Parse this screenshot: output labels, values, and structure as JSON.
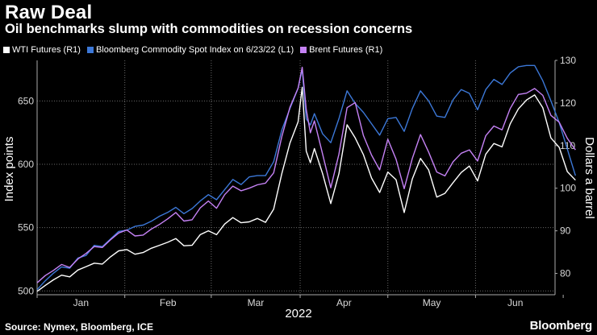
{
  "header": {
    "title": "Raw Deal",
    "subtitle": "Oil benchmarks slump with commodities on recession concerns"
  },
  "footer": {
    "source": "Source: Nymex, Bloomberg, ICE",
    "brand": "Bloomberg"
  },
  "chart_data": {
    "type": "line",
    "title": "Raw Deal",
    "subtitle": "Oil benchmarks slump with commodities on recession concerns",
    "xlabel": "2022",
    "ylabel_left": "Index points",
    "ylabel_right": "Dollars a barrel",
    "x_ticks": [
      "Jan",
      "Feb",
      "Mar",
      "Apr",
      "May",
      "Jun"
    ],
    "x_domain": [
      0,
      127
    ],
    "y_left": {
      "lim": [
        497,
        682
      ],
      "ticks": [
        500,
        550,
        600,
        650
      ]
    },
    "y_right": {
      "lim": [
        75,
        130
      ],
      "ticks": [
        80,
        90,
        100,
        110,
        120,
        130
      ]
    },
    "legend": [
      "WTI Futures (R1)",
      "Bloomberg Commodity Spot Index on 6/23/22 (L1)",
      "Brent Futures (R1)"
    ],
    "series": [
      {
        "name": "WTI Futures (R1)",
        "axis": "right",
        "color": "#ffffff",
        "values": [
          [
            0,
            75.8
          ],
          [
            2,
            77.2
          ],
          [
            4,
            78.5
          ],
          [
            6,
            79.6
          ],
          [
            8,
            79.2
          ],
          [
            10,
            80.8
          ],
          [
            12,
            81.6
          ],
          [
            14,
            82.4
          ],
          [
            16,
            82.2
          ],
          [
            18,
            83.9
          ],
          [
            20,
            85.3
          ],
          [
            22,
            85.6
          ],
          [
            24,
            84.5
          ],
          [
            26,
            84.9
          ],
          [
            28,
            85.9
          ],
          [
            30,
            86.6
          ],
          [
            32,
            87.3
          ],
          [
            34,
            88.2
          ],
          [
            36,
            86.5
          ],
          [
            38,
            86.6
          ],
          [
            40,
            89.1
          ],
          [
            42,
            90.0
          ],
          [
            44,
            89.1
          ],
          [
            46,
            91.6
          ],
          [
            48,
            93.1
          ],
          [
            50,
            91.9
          ],
          [
            52,
            92.1
          ],
          [
            54,
            92.9
          ],
          [
            56,
            92.0
          ],
          [
            58,
            95.1
          ],
          [
            60,
            103.4
          ],
          [
            62,
            110.6
          ],
          [
            64,
            115.6
          ],
          [
            65,
            123.7
          ],
          [
            66,
            108.7
          ],
          [
            67,
            106.0
          ],
          [
            68,
            109.3
          ],
          [
            70,
            103.4
          ],
          [
            72,
            96.4
          ],
          [
            74,
            103.4
          ],
          [
            76,
            114.9
          ],
          [
            78,
            111.8
          ],
          [
            80,
            107.9
          ],
          [
            82,
            102.4
          ],
          [
            84,
            99.0
          ],
          [
            86,
            103.8
          ],
          [
            88,
            102.0
          ],
          [
            90,
            94.3
          ],
          [
            92,
            102.2
          ],
          [
            94,
            107.0
          ],
          [
            96,
            104.3
          ],
          [
            98,
            97.9
          ],
          [
            100,
            98.8
          ],
          [
            102,
            101.3
          ],
          [
            104,
            103.7
          ],
          [
            106,
            105.2
          ],
          [
            108,
            101.7
          ],
          [
            110,
            108.0
          ],
          [
            112,
            110.5
          ],
          [
            114,
            109.7
          ],
          [
            116,
            115.1
          ],
          [
            118,
            118.6
          ],
          [
            120,
            120.7
          ],
          [
            122,
            121.9
          ],
          [
            124,
            118.9
          ],
          [
            126,
            111.8
          ],
          [
            128,
            109.6
          ],
          [
            130,
            103.9
          ],
          [
            132,
            101.9
          ]
        ]
      },
      {
        "name": "Bloomberg Commodity Spot Index on 6/23/22 (L1)",
        "axis": "left",
        "color": "#3c78d8",
        "values": [
          [
            0,
            501
          ],
          [
            2,
            508
          ],
          [
            4,
            514
          ],
          [
            6,
            519
          ],
          [
            8,
            518
          ],
          [
            10,
            526
          ],
          [
            12,
            528
          ],
          [
            14,
            536
          ],
          [
            16,
            535
          ],
          [
            18,
            541
          ],
          [
            20,
            547
          ],
          [
            22,
            548
          ],
          [
            24,
            551
          ],
          [
            26,
            552
          ],
          [
            28,
            555
          ],
          [
            30,
            559
          ],
          [
            32,
            562
          ],
          [
            34,
            566
          ],
          [
            36,
            561
          ],
          [
            38,
            565
          ],
          [
            40,
            571
          ],
          [
            42,
            576
          ],
          [
            44,
            572
          ],
          [
            46,
            580
          ],
          [
            48,
            588
          ],
          [
            50,
            584
          ],
          [
            52,
            590
          ],
          [
            54,
            591
          ],
          [
            56,
            591
          ],
          [
            58,
            602
          ],
          [
            60,
            627
          ],
          [
            62,
            644
          ],
          [
            64,
            660
          ],
          [
            65,
            675
          ],
          [
            66,
            636
          ],
          [
            67,
            631
          ],
          [
            68,
            640
          ],
          [
            70,
            624
          ],
          [
            72,
            617
          ],
          [
            74,
            636
          ],
          [
            76,
            658
          ],
          [
            78,
            648
          ],
          [
            80,
            641
          ],
          [
            82,
            632
          ],
          [
            84,
            623
          ],
          [
            86,
            636
          ],
          [
            88,
            637
          ],
          [
            90,
            626
          ],
          [
            92,
            644
          ],
          [
            94,
            658
          ],
          [
            96,
            650
          ],
          [
            98,
            638
          ],
          [
            100,
            637
          ],
          [
            102,
            651
          ],
          [
            104,
            659
          ],
          [
            106,
            656
          ],
          [
            108,
            643
          ],
          [
            110,
            659
          ],
          [
            112,
            667
          ],
          [
            114,
            663
          ],
          [
            116,
            672
          ],
          [
            118,
            677
          ],
          [
            120,
            678
          ],
          [
            122,
            678
          ],
          [
            124,
            666
          ],
          [
            126,
            650
          ],
          [
            128,
            633
          ],
          [
            130,
            612
          ],
          [
            132,
            591
          ]
        ]
      },
      {
        "name": "Brent Futures (R1)",
        "axis": "right",
        "color": "#c582f5",
        "values": [
          [
            0,
            77.8
          ],
          [
            2,
            79.5
          ],
          [
            4,
            80.7
          ],
          [
            6,
            82.1
          ],
          [
            8,
            81.4
          ],
          [
            10,
            83.4
          ],
          [
            12,
            84.7
          ],
          [
            14,
            86.3
          ],
          [
            16,
            86.1
          ],
          [
            18,
            87.9
          ],
          [
            20,
            89.5
          ],
          [
            22,
            90.2
          ],
          [
            24,
            88.8
          ],
          [
            26,
            89.0
          ],
          [
            28,
            90.4
          ],
          [
            30,
            91.5
          ],
          [
            32,
            92.8
          ],
          [
            34,
            94.3
          ],
          [
            36,
            92.3
          ],
          [
            38,
            92.6
          ],
          [
            40,
            95.4
          ],
          [
            42,
            97.0
          ],
          [
            44,
            95.3
          ],
          [
            46,
            98.5
          ],
          [
            48,
            100.5
          ],
          [
            50,
            99.4
          ],
          [
            52,
            100.0
          ],
          [
            54,
            100.8
          ],
          [
            56,
            101.2
          ],
          [
            58,
            103.6
          ],
          [
            60,
            112.1
          ],
          [
            62,
            119.0
          ],
          [
            64,
            123.5
          ],
          [
            65,
            128.4
          ],
          [
            66,
            118.5
          ],
          [
            67,
            113.0
          ],
          [
            68,
            115.8
          ],
          [
            70,
            108.0
          ],
          [
            72,
            100.1
          ],
          [
            74,
            108.0
          ],
          [
            76,
            118.9
          ],
          [
            78,
            120.1
          ],
          [
            80,
            112.4
          ],
          [
            82,
            107.8
          ],
          [
            84,
            104.3
          ],
          [
            86,
            111.5
          ],
          [
            88,
            106.8
          ],
          [
            90,
            99.9
          ],
          [
            92,
            107.0
          ],
          [
            94,
            112.6
          ],
          [
            96,
            108.5
          ],
          [
            98,
            103.8
          ],
          [
            100,
            102.9
          ],
          [
            102,
            106.2
          ],
          [
            104,
            108.2
          ],
          [
            106,
            109.0
          ],
          [
            108,
            106.4
          ],
          [
            110,
            112.3
          ],
          [
            112,
            114.6
          ],
          [
            114,
            113.7
          ],
          [
            116,
            118.7
          ],
          [
            118,
            122.0
          ],
          [
            120,
            122.3
          ],
          [
            122,
            123.4
          ],
          [
            124,
            121.8
          ],
          [
            126,
            117.1
          ],
          [
            128,
            115.5
          ],
          [
            130,
            111.7
          ],
          [
            132,
            109.0
          ]
        ]
      }
    ]
  },
  "colors": {
    "wti": "#ffffff",
    "bcom": "#3c78d8",
    "brent": "#c582f5",
    "grid": "#6a6a6a"
  }
}
